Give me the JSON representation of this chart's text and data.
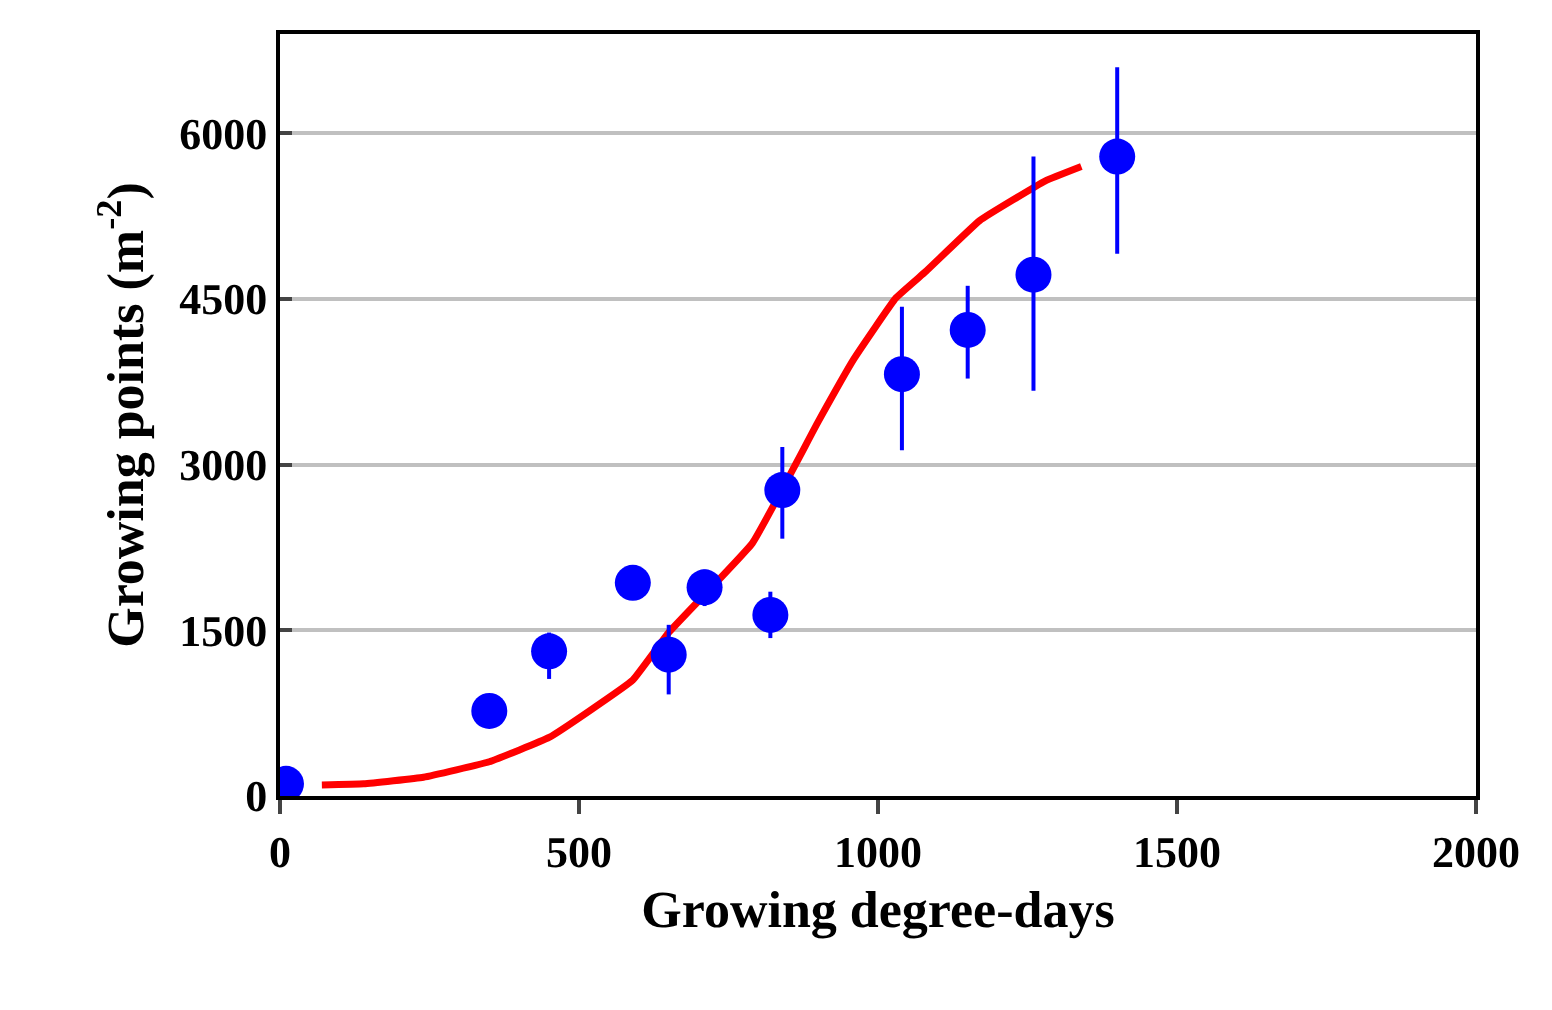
{
  "chart_data": {
    "type": "scatter",
    "xlabel": "Growing degree-days",
    "ylabel": "Growing points (m$^{-2}$)",
    "xlim": [
      0,
      2000
    ],
    "xticks": [
      0,
      500,
      1000,
      1500,
      2000
    ],
    "ylim": [
      0,
      6900
    ],
    "yticks": [
      0,
      1500,
      3000,
      4500,
      6000
    ],
    "grid": "y",
    "legend": false,
    "series": [
      {
        "color": "#0000ff",
        "marker": "circle",
        "x": [
          10,
          350,
          450,
          590,
          650,
          710,
          820,
          840,
          1040,
          1150,
          1260,
          1400
        ],
        "values": [
          110,
          770,
          1310,
          1930,
          1280,
          1890,
          1640,
          2770,
          3820,
          4220,
          4720,
          5790
        ],
        "errors": [
          null,
          null,
          [
            1060,
            1480
          ],
          null,
          [
            920,
            1550
          ],
          [
            1720,
            2050
          ],
          [
            1430,
            1850
          ],
          [
            2330,
            3160
          ],
          [
            3130,
            4430
          ],
          [
            3780,
            4620
          ],
          [
            3670,
            5790
          ],
          [
            4910,
            6600
          ]
        ]
      },
      {
        "type": "line",
        "color": "#ff0000",
        "line_style": "solid",
        "x": [
          70,
          140,
          240,
          350,
          450,
          520,
          590,
          650,
          790,
          900,
          960,
          1030,
          1080,
          1170,
          1280,
          1340
        ],
        "values": [
          100,
          110,
          170,
          310,
          530,
          780,
          1050,
          1480,
          2290,
          3390,
          3960,
          4510,
          4750,
          5210,
          5570,
          5700
        ]
      }
    ]
  }
}
